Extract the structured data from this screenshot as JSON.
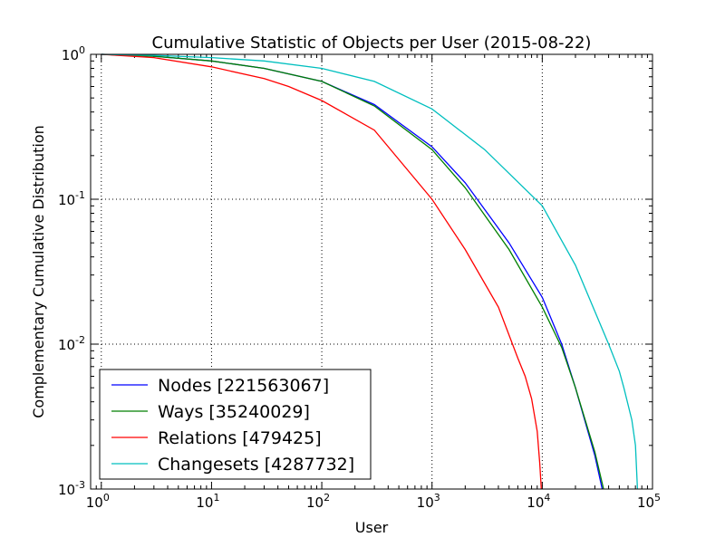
{
  "chart_data": {
    "type": "line",
    "title": "Cumulative Statistic of Objects per User (2015-08-22)",
    "xlabel": "User",
    "ylabel": "Complementary Cumulative Distribution",
    "xscale": "log",
    "yscale": "log",
    "xlim": [
      0.8,
      100000
    ],
    "ylim": [
      0.001,
      1
    ],
    "grid": true,
    "legend_placement": "bottom-left",
    "xticks": [
      {
        "value": 1,
        "base": "10",
        "exp": "0"
      },
      {
        "value": 10,
        "base": "10",
        "exp": "1"
      },
      {
        "value": 100,
        "base": "10",
        "exp": "2"
      },
      {
        "value": 1000,
        "base": "10",
        "exp": "3"
      },
      {
        "value": 10000,
        "base": "10",
        "exp": "4"
      },
      {
        "value": 100000,
        "base": "10",
        "exp": "5"
      }
    ],
    "yticks": [
      {
        "value": 1,
        "base": "10",
        "exp": "0"
      },
      {
        "value": 0.1,
        "base": "10",
        "exp": "-1"
      },
      {
        "value": 0.01,
        "base": "10",
        "exp": "-2"
      },
      {
        "value": 0.001,
        "base": "10",
        "exp": "-3"
      }
    ],
    "series": [
      {
        "name": "Nodes [221563067]",
        "color": "#0000ff",
        "x": [
          1,
          3,
          10,
          30,
          100,
          300,
          1000,
          2000,
          5000,
          10000,
          15000,
          20000,
          30000,
          35000
        ],
        "y": [
          1,
          0.97,
          0.9,
          0.8,
          0.65,
          0.45,
          0.23,
          0.13,
          0.05,
          0.021,
          0.01,
          0.005,
          0.0017,
          0.001
        ]
      },
      {
        "name": "Ways [35240029]",
        "color": "#007f00",
        "x": [
          1,
          3,
          10,
          30,
          100,
          300,
          1000,
          2000,
          5000,
          10000,
          15000,
          20000,
          30000,
          36000
        ],
        "y": [
          1,
          0.97,
          0.9,
          0.8,
          0.65,
          0.44,
          0.22,
          0.12,
          0.045,
          0.018,
          0.0095,
          0.005,
          0.0018,
          0.001
        ]
      },
      {
        "name": "Relations [479425]",
        "color": "#ff0000",
        "x": [
          1,
          3,
          10,
          30,
          50,
          100,
          300,
          1000,
          2000,
          4000,
          6000,
          7000,
          8000,
          9000,
          9500,
          9800
        ],
        "y": [
          1,
          0.95,
          0.82,
          0.68,
          0.6,
          0.48,
          0.3,
          0.1,
          0.045,
          0.018,
          0.008,
          0.006,
          0.0042,
          0.0025,
          0.0015,
          0.001
        ]
      },
      {
        "name": "Changesets [4287732]",
        "color": "#00bfbf",
        "x": [
          1,
          3,
          10,
          30,
          100,
          300,
          1000,
          3000,
          10000,
          20000,
          40000,
          50000,
          55000,
          65000,
          70000,
          73000
        ],
        "y": [
          1,
          0.985,
          0.95,
          0.9,
          0.8,
          0.65,
          0.42,
          0.22,
          0.09,
          0.035,
          0.01,
          0.0065,
          0.005,
          0.003,
          0.002,
          0.001
        ]
      }
    ]
  }
}
